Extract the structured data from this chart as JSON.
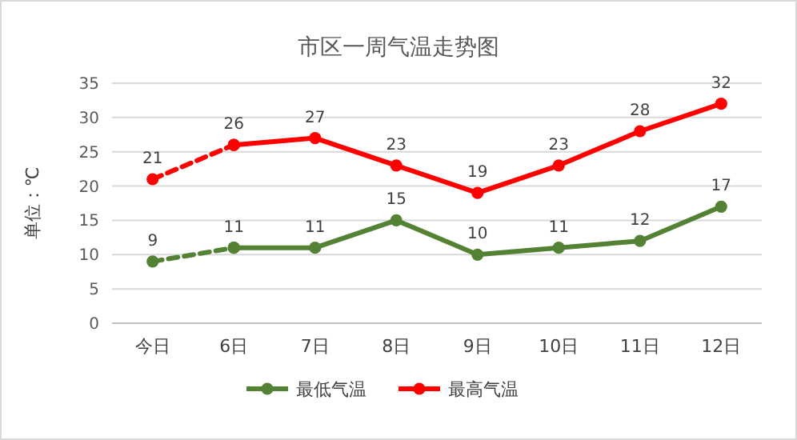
{
  "chart_data": {
    "type": "line",
    "title": "市区一周气温走势图",
    "ylabel": "单位：℃",
    "categories": [
      "今日",
      "6日",
      "7日",
      "8日",
      "9日",
      "10日",
      "11日",
      "12日"
    ],
    "series": [
      {
        "name": "最低气温",
        "color": "#548235",
        "values": [
          null,
          11,
          11,
          15,
          10,
          11,
          12,
          17
        ]
      },
      {
        "name": "最高气温",
        "color": "#ff0000",
        "values": [
          null,
          26,
          27,
          23,
          19,
          23,
          28,
          32
        ]
      },
      {
        "color": "#548235",
        "line_style": "dashed",
        "values": [
          9,
          11,
          null,
          null,
          null,
          null,
          null,
          null
        ],
        "value_labels": [
          "9",
          null,
          null,
          null,
          null,
          null,
          null,
          null
        ]
      },
      {
        "color": "#ff0000",
        "line_style": "dashed",
        "values": [
          21,
          26,
          null,
          null,
          null,
          null,
          null,
          null
        ],
        "value_labels": [
          "21",
          null,
          null,
          null,
          null,
          null,
          null,
          null
        ]
      }
    ],
    "ylim": [
      0,
      35
    ],
    "yticks": [
      0,
      5,
      10,
      15,
      20,
      25,
      30,
      35
    ],
    "grid": "y",
    "legend": "bottom",
    "marker": "circle",
    "line_style": "solid",
    "data_labels": true
  }
}
